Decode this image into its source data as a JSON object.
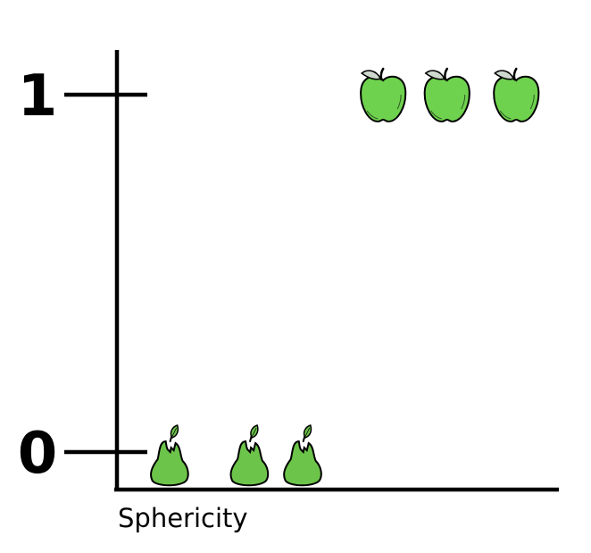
{
  "chart_data": {
    "type": "scatter",
    "title": "",
    "xlabel": "Sphericity",
    "ylabel": "",
    "ylim": [
      0,
      1
    ],
    "yticks": [
      {
        "value": 0,
        "label": "0"
      },
      {
        "value": 1,
        "label": "1"
      }
    ],
    "grid": false,
    "series": [
      {
        "marker": "pear-icon",
        "y": 0,
        "x": [
          1,
          2.5,
          3.5
        ]
      },
      {
        "marker": "apple-icon",
        "y": 1,
        "x": [
          5,
          6.2,
          7.5
        ]
      }
    ],
    "xlim": [
      0,
      8.3
    ],
    "colors": {
      "fruit": "#6fd24f",
      "pear": "#6cc44a",
      "leaf": "#cfd8cf",
      "axis": "#000000"
    }
  }
}
